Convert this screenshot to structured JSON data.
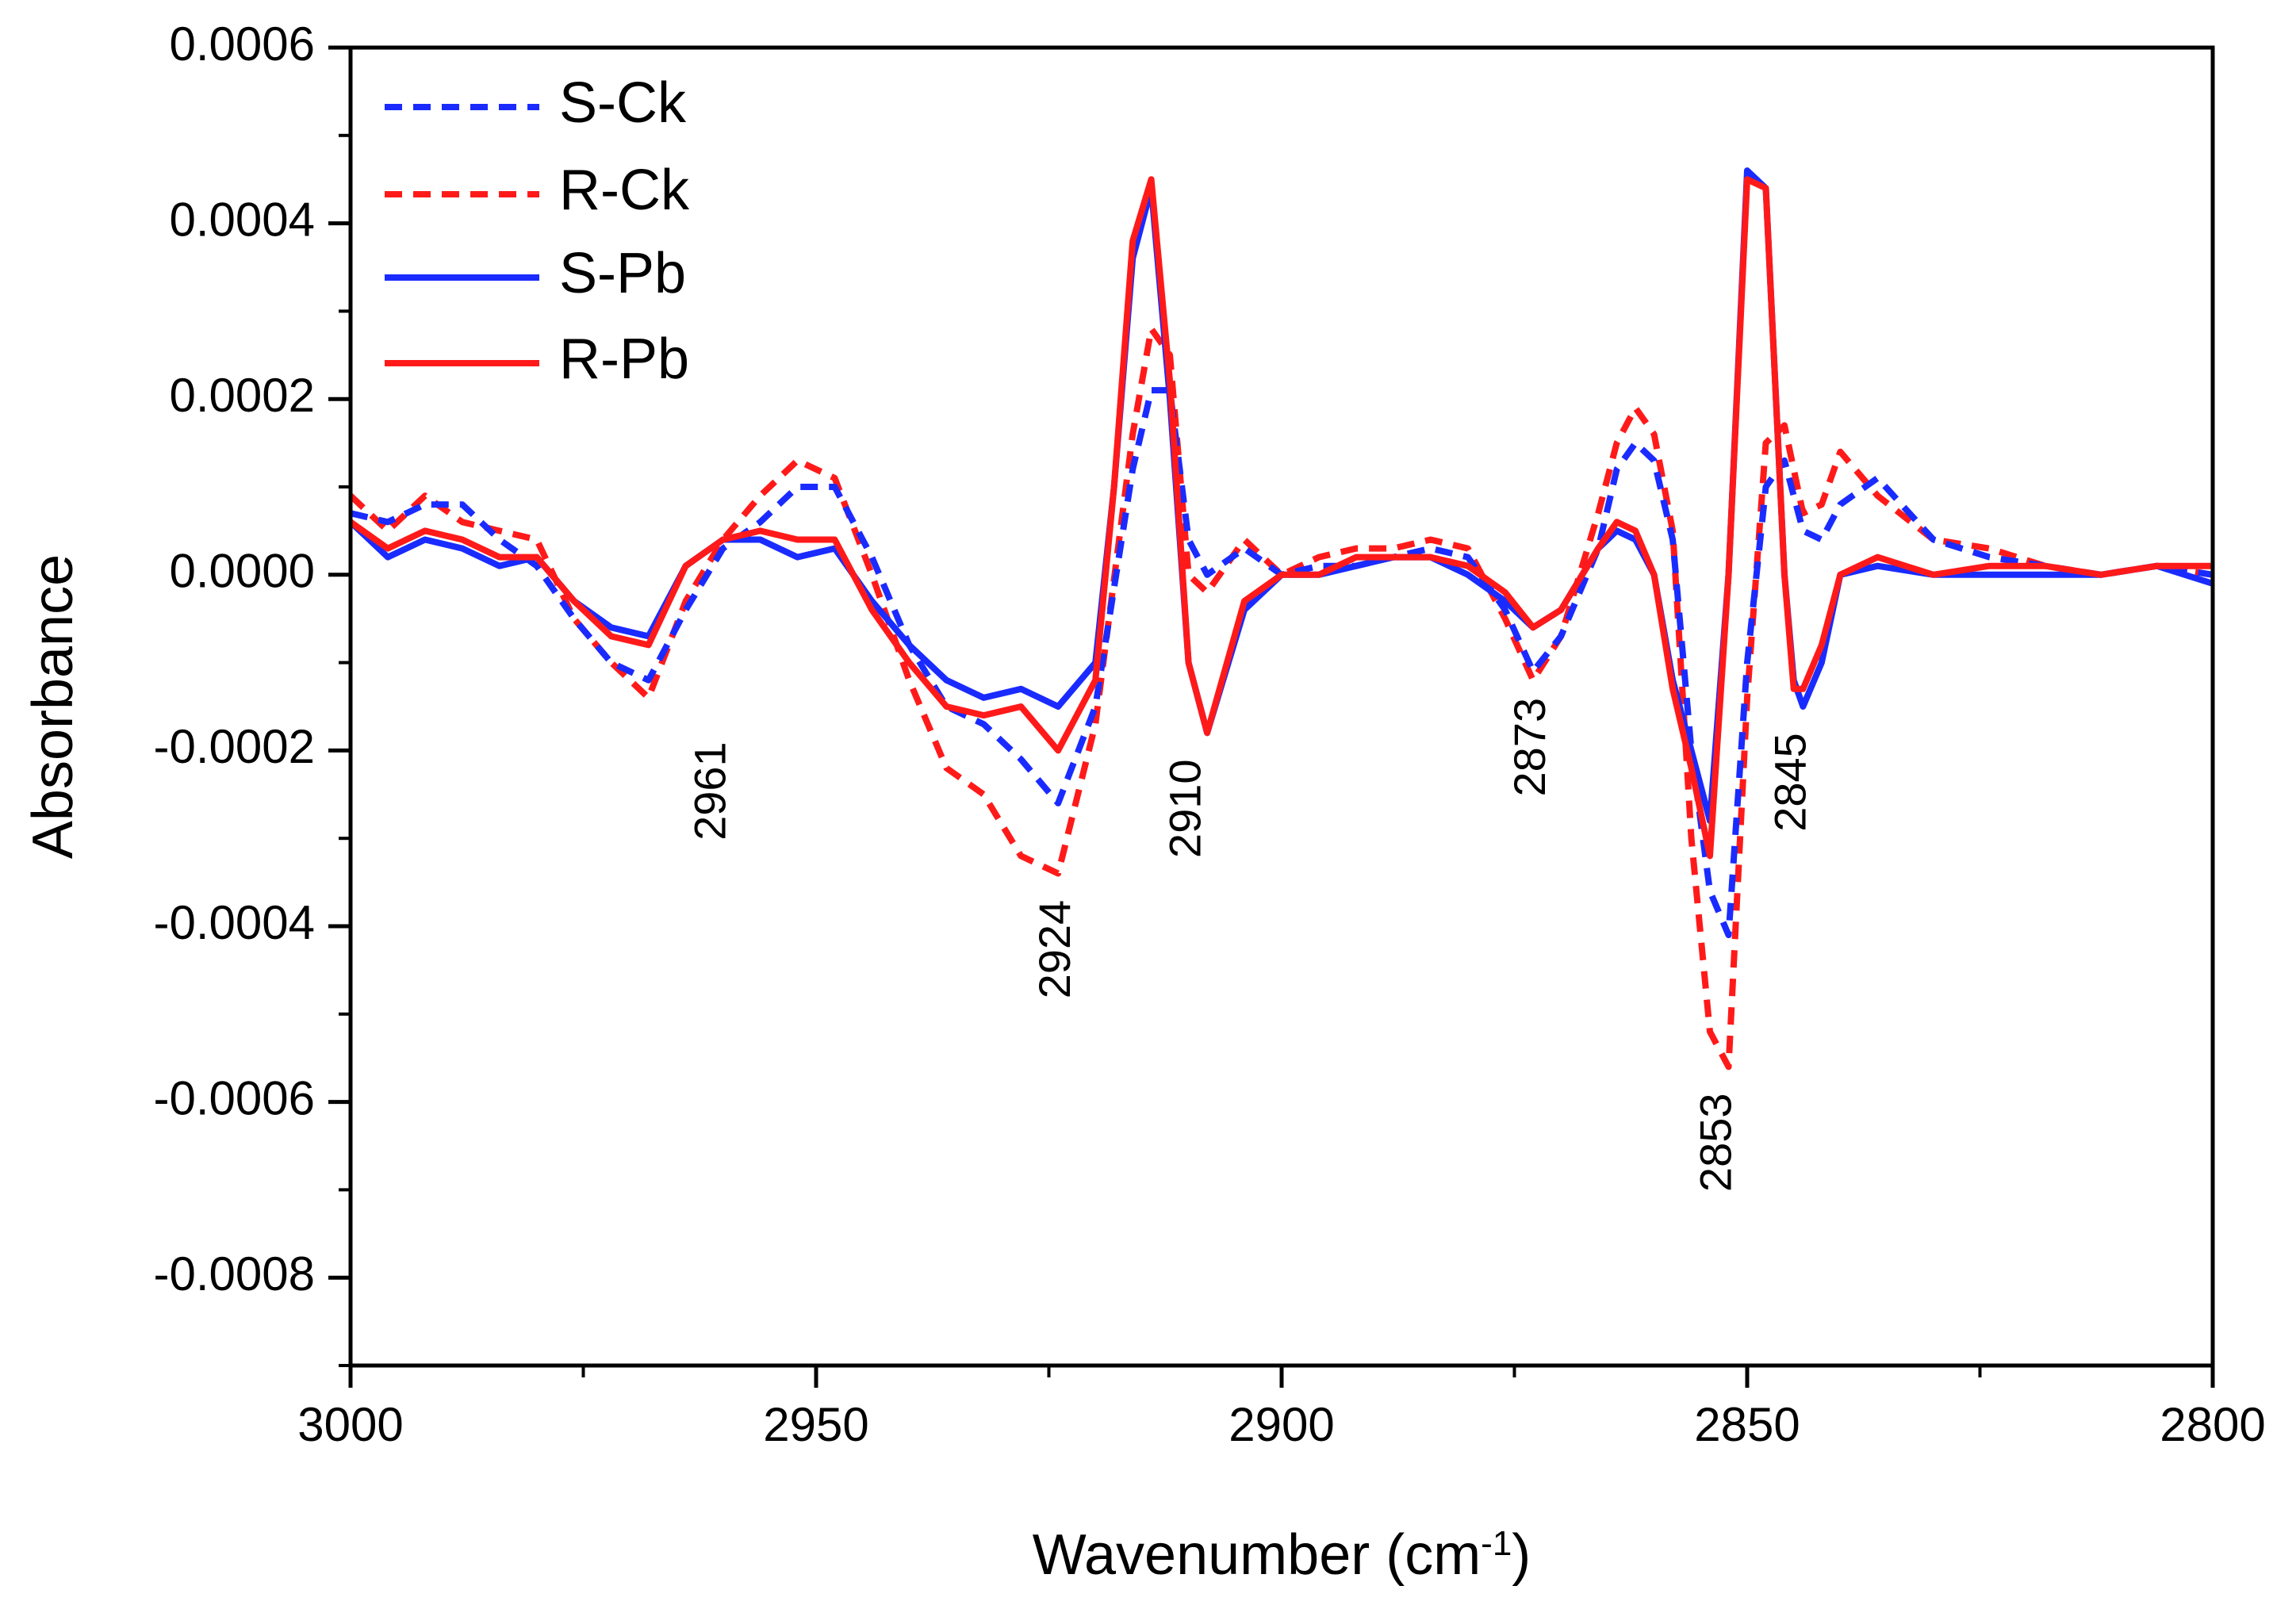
{
  "chart_data": {
    "type": "line",
    "title": "",
    "xlabel": "Wavenumber (cm",
    "xlabel_sup": "-1",
    "xlabel_close": ")",
    "ylabel": "Absorbance",
    "xlim": [
      3000,
      2800
    ],
    "ylim": [
      -0.0009,
      0.0006
    ],
    "x_reversed": true,
    "x_ticks": [
      3000,
      2950,
      2900,
      2850,
      2800
    ],
    "x_tick_labels": [
      "3000",
      "2950",
      "2900",
      "2850",
      "2800"
    ],
    "y_ticks": [
      0.0006,
      0.0004,
      0.0002,
      0.0,
      -0.0002,
      -0.0004,
      -0.0006,
      -0.0008
    ],
    "y_tick_labels": [
      "0.0006",
      "0.0004",
      "0.0002",
      "0.0000",
      "-0.0002",
      "-0.0004",
      "-0.0006",
      "-0.0008"
    ],
    "grid": false,
    "legend_position": "top-left",
    "series": [
      {
        "name": "S-Ck",
        "color": "#1a2bff",
        "style": "dashed",
        "x": [
          3000,
          2996,
          2992,
          2988,
          2984,
          2980,
          2976,
          2972,
          2968,
          2964,
          2960,
          2956,
          2952,
          2948,
          2944,
          2940,
          2936,
          2932,
          2928,
          2924,
          2920,
          2916,
          2914,
          2912,
          2910,
          2908,
          2904,
          2900,
          2896,
          2892,
          2888,
          2884,
          2880,
          2876,
          2873,
          2870,
          2866,
          2864,
          2862,
          2860,
          2858,
          2856,
          2854,
          2852,
          2850,
          2848,
          2846,
          2844,
          2842,
          2840,
          2836,
          2830,
          2824,
          2818,
          2812,
          2806,
          2800
        ],
        "y": [
          7e-05,
          6e-05,
          8e-05,
          8e-05,
          4e-05,
          1e-05,
          -5e-05,
          -0.0001,
          -0.00012,
          -4e-05,
          3e-05,
          6e-05,
          0.0001,
          0.0001,
          2e-05,
          -8e-05,
          -0.00015,
          -0.00017,
          -0.00021,
          -0.00026,
          -0.00015,
          0.00012,
          0.00021,
          0.00021,
          4e-05,
          0.0,
          3e-05,
          0.0,
          1e-05,
          1e-05,
          2e-05,
          3e-05,
          2e-05,
          -4e-05,
          -0.00011,
          -7e-05,
          3e-05,
          0.00012,
          0.00015,
          0.00013,
          4e-05,
          -0.0002,
          -0.00036,
          -0.00041,
          -0.0001,
          0.0001,
          0.00013,
          5e-05,
          4e-05,
          8e-05,
          0.00011,
          4e-05,
          2e-05,
          1e-05,
          0.0,
          1e-05,
          0.0
        ]
      },
      {
        "name": "R-Ck",
        "color": "#ff1a1a",
        "style": "dashed",
        "x": [
          3000,
          2996,
          2992,
          2988,
          2984,
          2980,
          2976,
          2972,
          2968,
          2964,
          2960,
          2956,
          2952,
          2948,
          2944,
          2940,
          2936,
          2932,
          2928,
          2924,
          2920,
          2916,
          2914,
          2912,
          2910,
          2908,
          2904,
          2900,
          2896,
          2892,
          2888,
          2884,
          2880,
          2876,
          2873,
          2870,
          2866,
          2864,
          2862,
          2860,
          2858,
          2856,
          2854,
          2852,
          2850,
          2848,
          2846,
          2844,
          2842,
          2840,
          2836,
          2830,
          2824,
          2818,
          2812,
          2806,
          2800
        ],
        "y": [
          9e-05,
          5e-05,
          9e-05,
          6e-05,
          5e-05,
          4e-05,
          -5e-05,
          -0.0001,
          -0.00014,
          -3e-05,
          4e-05,
          9e-05,
          0.00013,
          0.00011,
          0.0,
          -0.00012,
          -0.00022,
          -0.00025,
          -0.00032,
          -0.00034,
          -0.00017,
          0.00016,
          0.00028,
          0.00025,
          0.0,
          -2e-05,
          4e-05,
          0.0,
          2e-05,
          3e-05,
          3e-05,
          4e-05,
          3e-05,
          -5e-05,
          -0.00012,
          -7e-05,
          7e-05,
          0.00015,
          0.00019,
          0.00016,
          5e-05,
          -0.0003,
          -0.00052,
          -0.00056,
          -0.00014,
          0.00015,
          0.00017,
          7e-05,
          8e-05,
          0.00014,
          9e-05,
          4e-05,
          3e-05,
          1e-05,
          0.0,
          1e-05,
          0.0
        ]
      },
      {
        "name": "S-Pb",
        "color": "#1a2bff",
        "style": "solid",
        "x": [
          3000,
          2996,
          2992,
          2988,
          2984,
          2980,
          2976,
          2972,
          2968,
          2964,
          2960,
          2956,
          2952,
          2948,
          2944,
          2940,
          2936,
          2932,
          2928,
          2924,
          2920,
          2918,
          2916,
          2914,
          2912,
          2910,
          2908,
          2904,
          2900,
          2896,
          2892,
          2888,
          2884,
          2880,
          2876,
          2873,
          2870,
          2866,
          2864,
          2862,
          2860,
          2858,
          2856,
          2854,
          2852,
          2850,
          2848,
          2846,
          2845,
          2844,
          2842,
          2840,
          2836,
          2830,
          2824,
          2818,
          2812,
          2806,
          2800
        ],
        "y": [
          6e-05,
          2e-05,
          4e-05,
          3e-05,
          1e-05,
          2e-05,
          -3e-05,
          -6e-05,
          -7e-05,
          1e-05,
          4e-05,
          4e-05,
          2e-05,
          3e-05,
          -3e-05,
          -8e-05,
          -0.00012,
          -0.00014,
          -0.00013,
          -0.00015,
          -0.0001,
          0.0001,
          0.00036,
          0.00044,
          0.0002,
          -0.0001,
          -0.00018,
          -4e-05,
          0.0,
          0.0,
          1e-05,
          2e-05,
          2e-05,
          0.0,
          -3e-05,
          -6e-05,
          -4e-05,
          3e-05,
          5e-05,
          4e-05,
          0.0,
          -0.00012,
          -0.0002,
          -0.00028,
          0.0,
          0.00046,
          0.00044,
          0.0,
          -0.00012,
          -0.00015,
          -0.0001,
          0.0,
          1e-05,
          0.0,
          0.0,
          0.0,
          0.0,
          1e-05,
          -1e-05
        ]
      },
      {
        "name": "R-Pb",
        "color": "#ff1a1a",
        "style": "solid",
        "x": [
          3000,
          2996,
          2992,
          2988,
          2984,
          2980,
          2976,
          2972,
          2968,
          2964,
          2960,
          2956,
          2952,
          2948,
          2944,
          2940,
          2936,
          2932,
          2928,
          2924,
          2920,
          2918,
          2916,
          2914,
          2912,
          2910,
          2908,
          2904,
          2900,
          2896,
          2892,
          2888,
          2884,
          2880,
          2876,
          2873,
          2870,
          2866,
          2864,
          2862,
          2860,
          2858,
          2856,
          2854,
          2852,
          2850,
          2848,
          2846,
          2845,
          2844,
          2842,
          2840,
          2836,
          2830,
          2824,
          2818,
          2812,
          2806,
          2800
        ],
        "y": [
          6e-05,
          3e-05,
          5e-05,
          4e-05,
          2e-05,
          2e-05,
          -3e-05,
          -7e-05,
          -8e-05,
          1e-05,
          4e-05,
          5e-05,
          4e-05,
          4e-05,
          -4e-05,
          -0.0001,
          -0.00015,
          -0.00016,
          -0.00015,
          -0.0002,
          -0.00012,
          0.0001,
          0.00038,
          0.00045,
          0.00022,
          -0.0001,
          -0.00018,
          -3e-05,
          0.0,
          0.0,
          2e-05,
          2e-05,
          2e-05,
          1e-05,
          -2e-05,
          -6e-05,
          -4e-05,
          3e-05,
          6e-05,
          5e-05,
          0.0,
          -0.00013,
          -0.00022,
          -0.00032,
          0.0,
          0.00045,
          0.00044,
          0.0,
          -0.00013,
          -0.00013,
          -8e-05,
          0.0,
          2e-05,
          0.0,
          1e-05,
          1e-05,
          0.0,
          1e-05,
          1e-05
        ]
      }
    ],
    "annotations": [
      {
        "text": "2961",
        "x": 2961,
        "y": -0.00019
      },
      {
        "text": "2924",
        "x": 2924,
        "y": -0.00037
      },
      {
        "text": "2910",
        "x": 2910,
        "y": -0.00021
      },
      {
        "text": "2873",
        "x": 2873,
        "y": -0.00014
      },
      {
        "text": "2853",
        "x": 2853,
        "y": -0.00059
      },
      {
        "text": "2845",
        "x": 2845,
        "y": -0.00018
      }
    ]
  }
}
